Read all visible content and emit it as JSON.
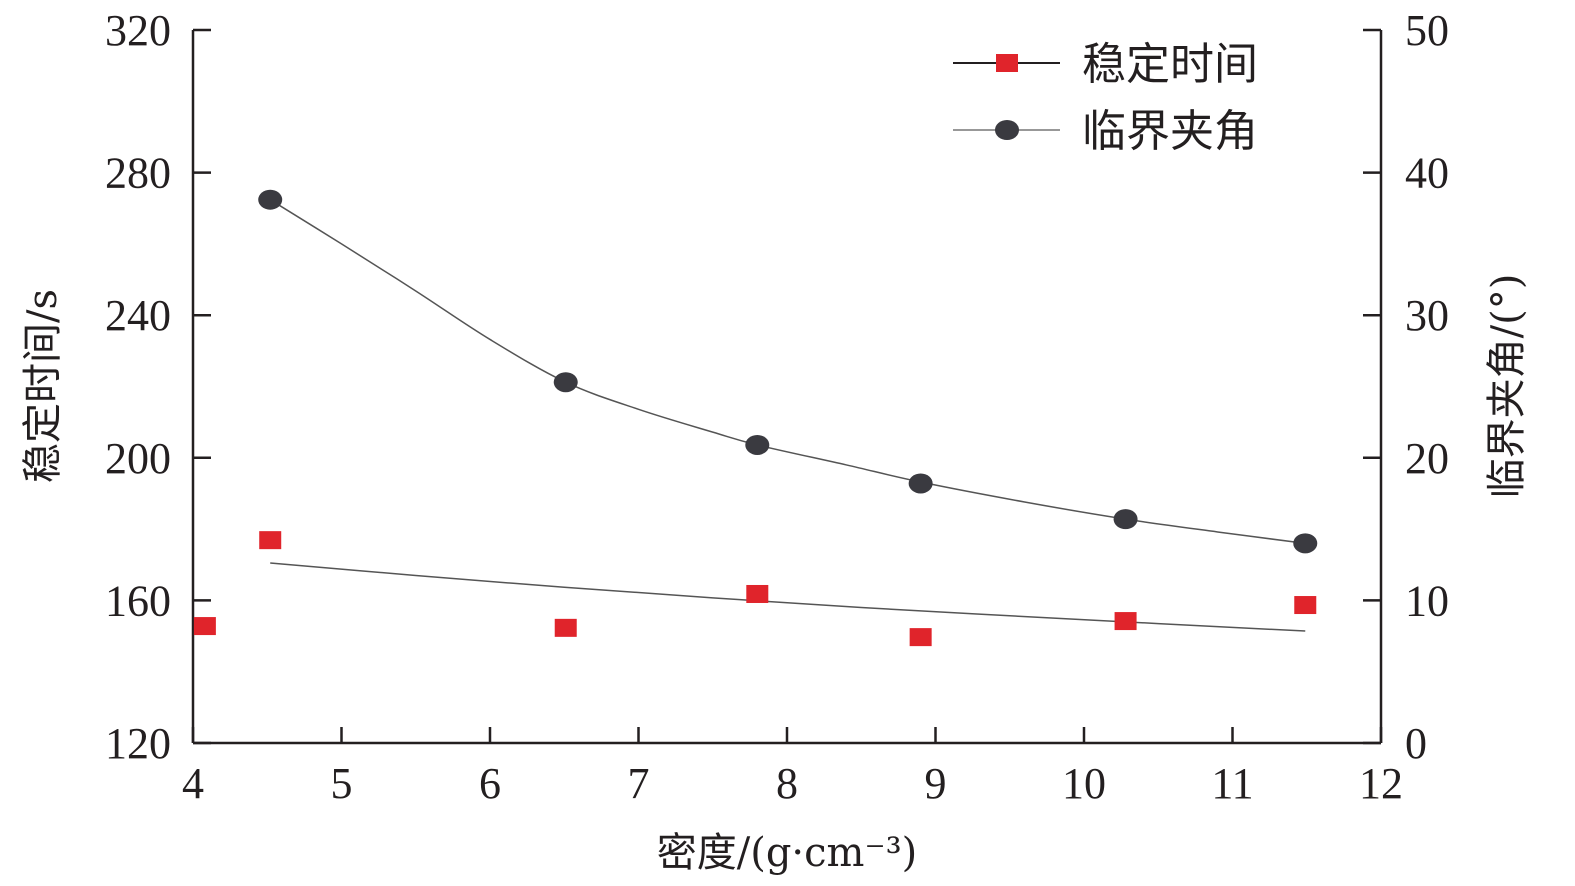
{
  "chart_data": {
    "type": "scatter",
    "xlabel": "密度/(g·cm⁻³)",
    "ylabel": "稳定时间/s",
    "y2label": "临界夹角/(°)",
    "xlim": [
      4,
      12
    ],
    "ylim": [
      120,
      320
    ],
    "y2lim": [
      0,
      50
    ],
    "xticks": [
      "4",
      "5",
      "6",
      "7",
      "8",
      "9",
      "10",
      "11",
      "12"
    ],
    "yticks": [
      "120",
      "160",
      "200",
      "240",
      "280",
      "320"
    ],
    "y2ticks": [
      "0",
      "10",
      "20",
      "30",
      "40",
      "50"
    ],
    "grid": false,
    "legend_position": "top-right",
    "series": [
      {
        "name": "稳定时间",
        "axis": "left",
        "marker": "square",
        "color": "#e0242b",
        "x": [
          4.08,
          4.52,
          6.51,
          7.8,
          8.9,
          10.28,
          11.49
        ],
        "y": [
          152.8,
          176.9,
          152.3,
          161.8,
          149.7,
          154.2,
          158.7
        ],
        "fit": {
          "x": [
            4.52,
            5.5,
            6.5,
            7.5,
            8.5,
            9.5,
            10.5,
            11.49
          ],
          "y": [
            170.5,
            167.0,
            163.7,
            160.7,
            158.0,
            155.7,
            153.5,
            151.4
          ]
        }
      },
      {
        "name": "临界夹角",
        "axis": "right",
        "marker": "circle",
        "color": "#3a3a40",
        "x": [
          4.52,
          6.51,
          7.8,
          8.9,
          10.28,
          11.49
        ],
        "y": [
          38.1,
          25.3,
          20.9,
          18.2,
          15.7,
          14.0
        ],
        "fit": {
          "x": [
            4.52,
            5.0,
            5.5,
            6.0,
            6.51,
            7.0,
            7.5,
            7.8,
            8.4,
            8.9,
            9.6,
            10.28,
            10.9,
            11.49
          ],
          "y": [
            38.1,
            35.0,
            31.7,
            28.3,
            25.3,
            23.4,
            21.8,
            20.9,
            19.5,
            18.3,
            16.9,
            15.7,
            14.8,
            14.0
          ]
        }
      }
    ]
  }
}
